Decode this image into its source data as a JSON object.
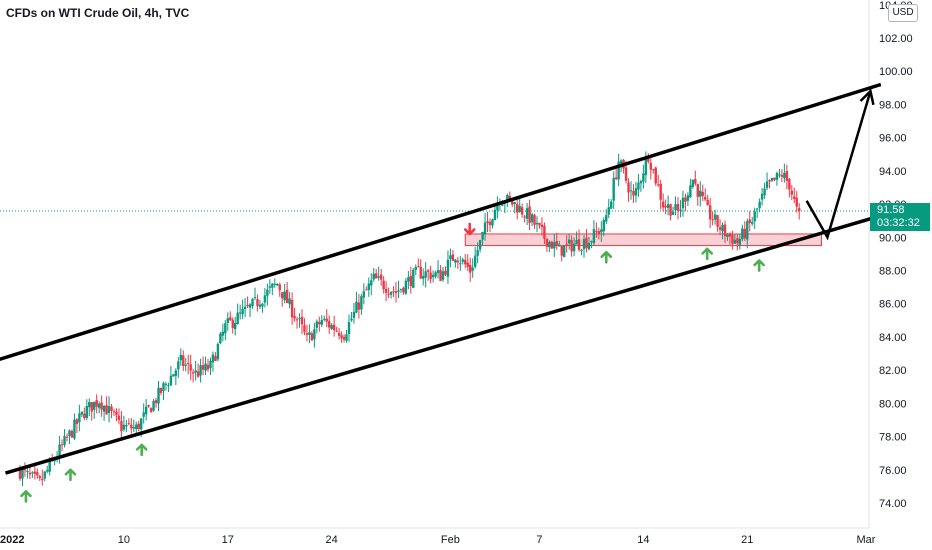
{
  "header": {
    "title": "CFDs on WTI Crude Oil, 4h, TVC"
  },
  "axis": {
    "currency": "USD"
  },
  "price": {
    "last": "91.58",
    "countdown": "03:32:32"
  },
  "colors": {
    "up": "#089981",
    "down": "#f23645",
    "zone_fill": "#f7c6c9",
    "zone_stroke": "#f23645",
    "last_line": "#089981"
  },
  "chart_data": {
    "type": "candlestick",
    "instrument": "CFDs on WTI Crude Oil",
    "timeframe": "4h",
    "source": "TVC",
    "ylim": [
      73,
      104
    ],
    "y_ticks": [
      74,
      76,
      78,
      80,
      82,
      84,
      86,
      88,
      90,
      92,
      94,
      96,
      98,
      100,
      102
    ],
    "x_ticks": [
      {
        "label": "2022",
        "day": 3
      },
      {
        "label": "10",
        "day": 10
      },
      {
        "label": "17",
        "day": 17
      },
      {
        "label": "24",
        "day": 24
      },
      {
        "label": "Feb",
        "day": 32
      },
      {
        "label": "7",
        "day": 38
      },
      {
        "label": "14",
        "day": 45
      },
      {
        "label": "21",
        "day": 52
      },
      {
        "label": "Mar",
        "day": 60
      }
    ],
    "xlim": [
      3,
      61.5
    ],
    "last_price": 91.58,
    "anchors": [
      [
        3,
        76.0
      ],
      [
        4.5,
        75.2
      ],
      [
        6,
        77.4
      ],
      [
        7.5,
        79.5
      ],
      [
        8.5,
        80.2
      ],
      [
        10,
        78.6
      ],
      [
        11,
        78.5
      ],
      [
        12.5,
        80.5
      ],
      [
        14,
        82.5
      ],
      [
        15,
        81.8
      ],
      [
        16,
        82.2
      ],
      [
        17,
        84.6
      ],
      [
        19,
        86.0
      ],
      [
        20.5,
        87.2
      ],
      [
        22,
        84.8
      ],
      [
        22.5,
        83.8
      ],
      [
        23.5,
        85.0
      ],
      [
        25,
        84.2
      ],
      [
        26,
        86.0
      ],
      [
        27,
        87.5
      ],
      [
        28.5,
        86.7
      ],
      [
        30,
        87.9
      ],
      [
        31.5,
        87.7
      ],
      [
        32.5,
        89.0
      ],
      [
        33.5,
        88.0
      ],
      [
        34.5,
        90.5
      ],
      [
        35.5,
        92.4
      ],
      [
        36.5,
        92.0
      ],
      [
        37.5,
        91.2
      ],
      [
        38.5,
        90.0
      ],
      [
        39.5,
        89.2
      ],
      [
        40.5,
        89.6
      ],
      [
        41.5,
        89.8
      ],
      [
        42.5,
        90.7
      ],
      [
        43,
        92.5
      ],
      [
        43.5,
        94.6
      ],
      [
        44.5,
        92.3
      ],
      [
        45.5,
        95.0
      ],
      [
        46.5,
        92.0
      ],
      [
        47.5,
        91.5
      ],
      [
        48.5,
        93.5
      ],
      [
        49.5,
        91.5
      ],
      [
        50.5,
        90.4
      ],
      [
        51.5,
        89.7
      ],
      [
        52,
        90.3
      ],
      [
        52.5,
        91.0
      ],
      [
        53.5,
        93.0
      ],
      [
        54.5,
        93.8
      ],
      [
        55,
        93.2
      ],
      [
        55.5,
        91.58
      ]
    ],
    "support_zone": {
      "from_day": 33,
      "to_day": 57,
      "low": 89.5,
      "high": 90.2
    },
    "channel": {
      "upper": [
        [
          0,
          82.2
        ],
        [
          61,
          99.2
        ]
      ],
      "lower": [
        [
          0,
          75.8
        ],
        [
          61,
          91.3
        ]
      ]
    },
    "projection": [
      [
        56,
        92.2
      ],
      [
        57.4,
        90.0
      ],
      [
        60.3,
        98.8
      ]
    ],
    "markers": [
      {
        "type": "up",
        "day": 3.4,
        "price": 74.4
      },
      {
        "type": "up",
        "day": 6.4,
        "price": 75.7
      },
      {
        "type": "up",
        "day": 11.2,
        "price": 77.2
      },
      {
        "type": "down",
        "day": 33.3,
        "price": 90.5
      },
      {
        "type": "up",
        "day": 42.5,
        "price": 88.8
      },
      {
        "type": "up",
        "day": 49.3,
        "price": 89.0
      },
      {
        "type": "up",
        "day": 52.8,
        "price": 88.3
      }
    ]
  }
}
